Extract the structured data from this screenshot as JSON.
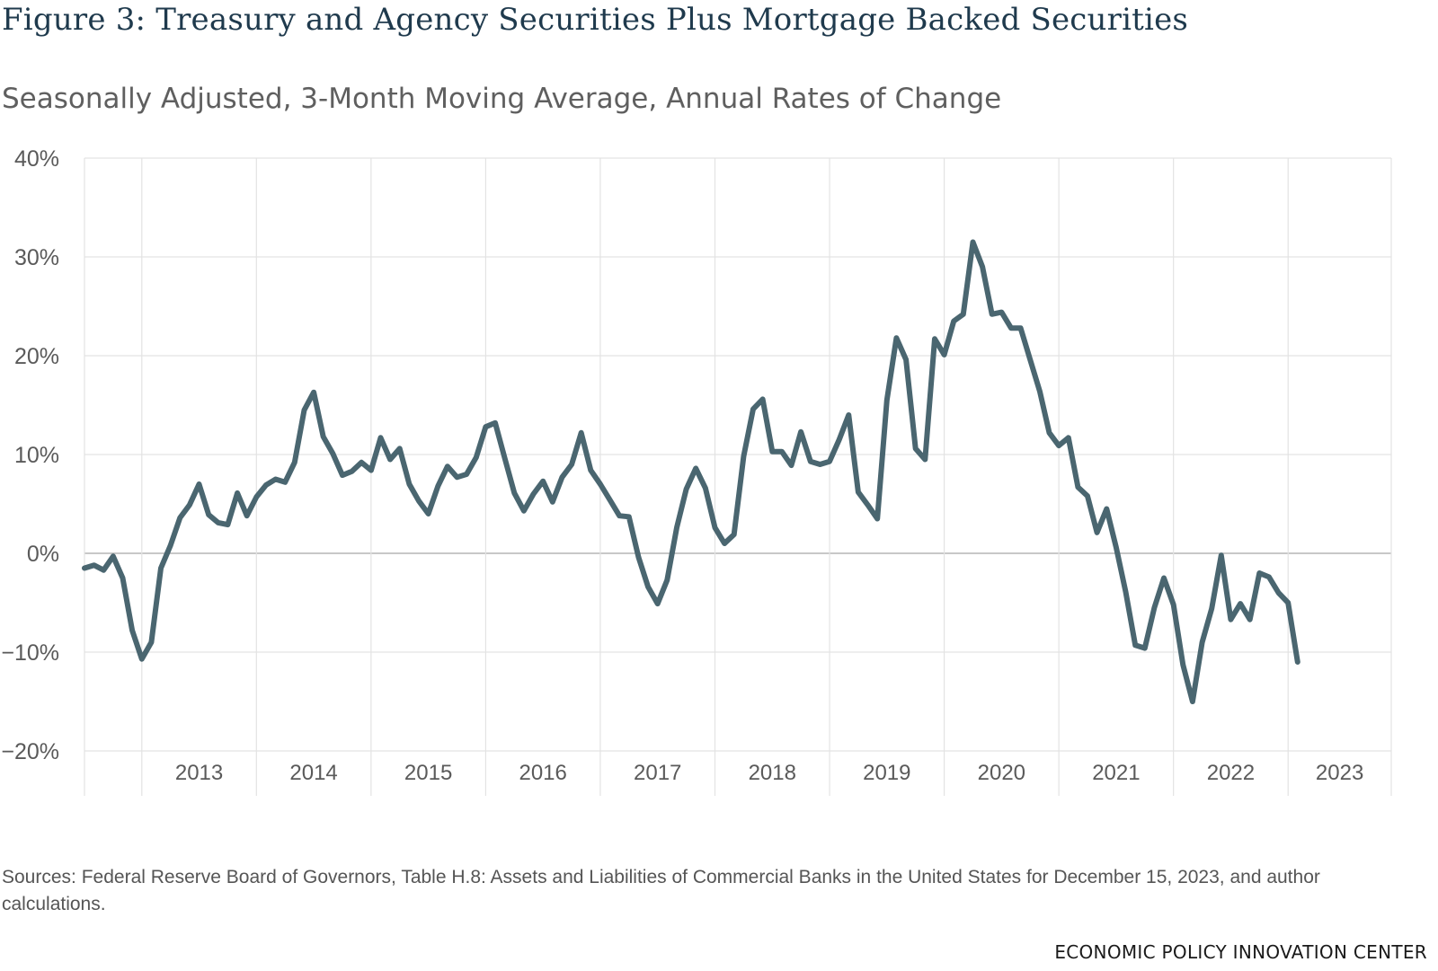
{
  "chart_data": {
    "type": "line",
    "title": "Figure 3: Treasury and Agency Securities Plus Mortgage Backed Securities",
    "subtitle": "Seasonally Adjusted, 3-Month Moving Average, Annual Rates of Change",
    "xlabel": "",
    "ylabel": "",
    "ylim": [
      -20,
      40
    ],
    "yticks": [
      40,
      30,
      20,
      10,
      0,
      -10,
      -20
    ],
    "ytick_labels": [
      "40%",
      "30%",
      "20%",
      "10%",
      "0%",
      "−10%",
      "−20%"
    ],
    "year_labels": [
      "2013",
      "2014",
      "2015",
      "2016",
      "2017",
      "2018",
      "2019",
      "2020",
      "2021",
      "2022",
      "2023"
    ],
    "grid": true,
    "legend": "none",
    "colors": {
      "line": "#4a6670",
      "grid": "#e3e3e3",
      "zero": "#b5b5b5",
      "axis_text": "#5a5a5a"
    },
    "series": [
      {
        "frequency": "monthly",
        "start": "2012-07",
        "values": [
          -1.5,
          -1.2,
          -1.7,
          -0.3,
          -2.5,
          -7.8,
          -10.7,
          -9.0,
          -1.5,
          0.8,
          3.6,
          4.9,
          7.0,
          3.9,
          3.1,
          2.9,
          6.1,
          3.8,
          5.7,
          6.9,
          7.5,
          7.2,
          9.2,
          14.5,
          16.3,
          11.8,
          10.1,
          7.9,
          8.3,
          9.2,
          8.4,
          11.7,
          9.5,
          10.6,
          7.0,
          5.3,
          4.0,
          6.8,
          8.8,
          7.7,
          8.0,
          9.7,
          12.8,
          13.2,
          9.6,
          6.1,
          4.3,
          6.0,
          7.3,
          5.2,
          7.7,
          9.0,
          12.2,
          8.4,
          7.0,
          5.4,
          3.8,
          3.7,
          -0.4,
          -3.4,
          -5.1,
          -2.7,
          2.6,
          6.5,
          8.6,
          6.6,
          2.6,
          1.0,
          1.9,
          9.8,
          14.6,
          15.6,
          10.3,
          10.3,
          8.9,
          12.3,
          9.3,
          9.0,
          9.3,
          11.5,
          14.0,
          6.2,
          4.9,
          3.5,
          15.5,
          21.8,
          19.6,
          10.6,
          9.5,
          21.7,
          20.1,
          23.5,
          24.2,
          31.5,
          29.0,
          24.2,
          24.4,
          22.8,
          22.8,
          19.6,
          16.4,
          12.2,
          10.9,
          11.7,
          6.7,
          5.8,
          2.1,
          4.5,
          0.6,
          -3.9,
          -9.3,
          -9.6,
          -5.5,
          -2.5,
          -5.2,
          -11.3,
          -15.0,
          -9.0,
          -5.6,
          -0.2,
          -6.7,
          -5.1,
          -6.7,
          -2.0,
          -2.4,
          -4.0,
          -5.0,
          -11.0
        ]
      }
    ]
  },
  "source_text": "Sources: Federal Reserve Board of Governors, Table H.8: Assets and Liabilities of Commercial Banks in the United States for December 15, 2023, and author calculations.",
  "footer": "ECONOMIC POLICY INNOVATION CENTER"
}
